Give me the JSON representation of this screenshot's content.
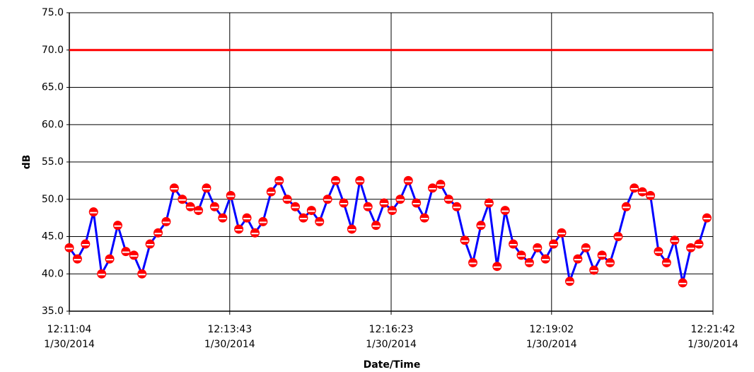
{
  "chart_data": {
    "type": "line",
    "ylabel": "dB",
    "xlabel": "Date/Time",
    "x": [
      "1/30/2014 12:11:04",
      "1/30/2014 12:11:12",
      "1/30/2014 12:11:20",
      "1/30/2014 12:11:28",
      "1/30/2014 12:11:36",
      "1/30/2014 12:11:44",
      "1/30/2014 12:11:52",
      "1/30/2014 12:12:00",
      "1/30/2014 12:12:08",
      "1/30/2014 12:12:16",
      "1/30/2014 12:12:24",
      "1/30/2014 12:12:32",
      "1/30/2014 12:12:40",
      "1/30/2014 12:12:48",
      "1/30/2014 12:12:56",
      "1/30/2014 12:13:04",
      "1/30/2014 12:13:12",
      "1/30/2014 12:13:20",
      "1/30/2014 12:13:28",
      "1/30/2014 12:13:36",
      "1/30/2014 12:13:44",
      "1/30/2014 12:13:52",
      "1/30/2014 12:14:00",
      "1/30/2014 12:14:08",
      "1/30/2014 12:14:16",
      "1/30/2014 12:14:24",
      "1/30/2014 12:14:32",
      "1/30/2014 12:14:40",
      "1/30/2014 12:14:48",
      "1/30/2014 12:14:56",
      "1/30/2014 12:15:04",
      "1/30/2014 12:15:12",
      "1/30/2014 12:15:20",
      "1/30/2014 12:15:28",
      "1/30/2014 12:15:36",
      "1/30/2014 12:15:44",
      "1/30/2014 12:15:52",
      "1/30/2014 12:16:00",
      "1/30/2014 12:16:08",
      "1/30/2014 12:16:16",
      "1/30/2014 12:16:24",
      "1/30/2014 12:16:32",
      "1/30/2014 12:16:40",
      "1/30/2014 12:16:48",
      "1/30/2014 12:16:56",
      "1/30/2014 12:17:04",
      "1/30/2014 12:17:12",
      "1/30/2014 12:17:20",
      "1/30/2014 12:17:28",
      "1/30/2014 12:17:36",
      "1/30/2014 12:17:44",
      "1/30/2014 12:17:52",
      "1/30/2014 12:18:00",
      "1/30/2014 12:18:08",
      "1/30/2014 12:18:16",
      "1/30/2014 12:18:24",
      "1/30/2014 12:18:32",
      "1/30/2014 12:18:40",
      "1/30/2014 12:18:48",
      "1/30/2014 12:18:56",
      "1/30/2014 12:19:04",
      "1/30/2014 12:19:12",
      "1/30/2014 12:19:20",
      "1/30/2014 12:19:28",
      "1/30/2014 12:19:36",
      "1/30/2014 12:19:44",
      "1/30/2014 12:19:52",
      "1/30/2014 12:20:00",
      "1/30/2014 12:20:08",
      "1/30/2014 12:20:16",
      "1/30/2014 12:20:24",
      "1/30/2014 12:20:32",
      "1/30/2014 12:20:40",
      "1/30/2014 12:20:48",
      "1/30/2014 12:20:56",
      "1/30/2014 12:21:04",
      "1/30/2014 12:21:12",
      "1/30/2014 12:21:20",
      "1/30/2014 12:21:28",
      "1/30/2014 12:21:36"
    ],
    "series": [
      {
        "color": "#0000ff",
        "marker_color": "#ff0000",
        "values": [
          43.5,
          42.0,
          44.0,
          48.3,
          40.0,
          42.0,
          46.5,
          43.0,
          42.5,
          40.0,
          44.0,
          45.5,
          47.0,
          51.5,
          50.0,
          49.0,
          48.5,
          51.5,
          49.0,
          47.5,
          50.5,
          46.0,
          47.5,
          45.5,
          47.0,
          51.0,
          52.5,
          50.0,
          49.0,
          47.5,
          48.5,
          47.0,
          50.0,
          52.5,
          49.5,
          46.0,
          52.5,
          49.0,
          46.5,
          49.5,
          48.5,
          50.0,
          52.5,
          49.5,
          47.5,
          51.5,
          52.0,
          50.0,
          49.0,
          44.5,
          41.5,
          46.5,
          49.5,
          41.0,
          48.5,
          44.0,
          42.5,
          41.5,
          43.5,
          42.0,
          44.0,
          45.5,
          39.0,
          42.0,
          43.5,
          40.5,
          42.5,
          41.5,
          45.0,
          49.0,
          51.5,
          51.0,
          50.5,
          43.0,
          41.5,
          44.5,
          38.8,
          43.5,
          44.0,
          47.5
        ]
      }
    ],
    "reference_lines": [
      {
        "value": 70,
        "color": "#ff0000"
      }
    ],
    "xlim": [
      "1/30/2014 12:11:04",
      "1/30/2014 12:21:42"
    ],
    "xticks": [
      {
        "value": "1/30/2014 12:11:04",
        "label": "12:11:04\n1/30/2014"
      },
      {
        "value": "1/30/2014 12:13:43",
        "label": "12:13:43\n1/30/2014"
      },
      {
        "value": "1/30/2014 12:16:23",
        "label": "12:16:23\n1/30/2014"
      },
      {
        "value": "1/30/2014 12:19:02",
        "label": "12:19:02\n1/30/2014"
      },
      {
        "value": "1/30/2014 12:21:42",
        "label": "12:21:42\n1/30/2014"
      }
    ],
    "ylim": [
      35,
      75
    ],
    "yticks": [
      {
        "value": 35,
        "label": "35.0"
      },
      {
        "value": 40,
        "label": "40.0"
      },
      {
        "value": 45,
        "label": "45.0"
      },
      {
        "value": 50,
        "label": "50.0"
      },
      {
        "value": 55,
        "label": "55.0"
      },
      {
        "value": 60,
        "label": "60.0"
      },
      {
        "value": 65,
        "label": "65.0"
      },
      {
        "value": 70,
        "label": "70.0"
      },
      {
        "value": 75,
        "label": "75.0"
      }
    ],
    "grid": true
  }
}
